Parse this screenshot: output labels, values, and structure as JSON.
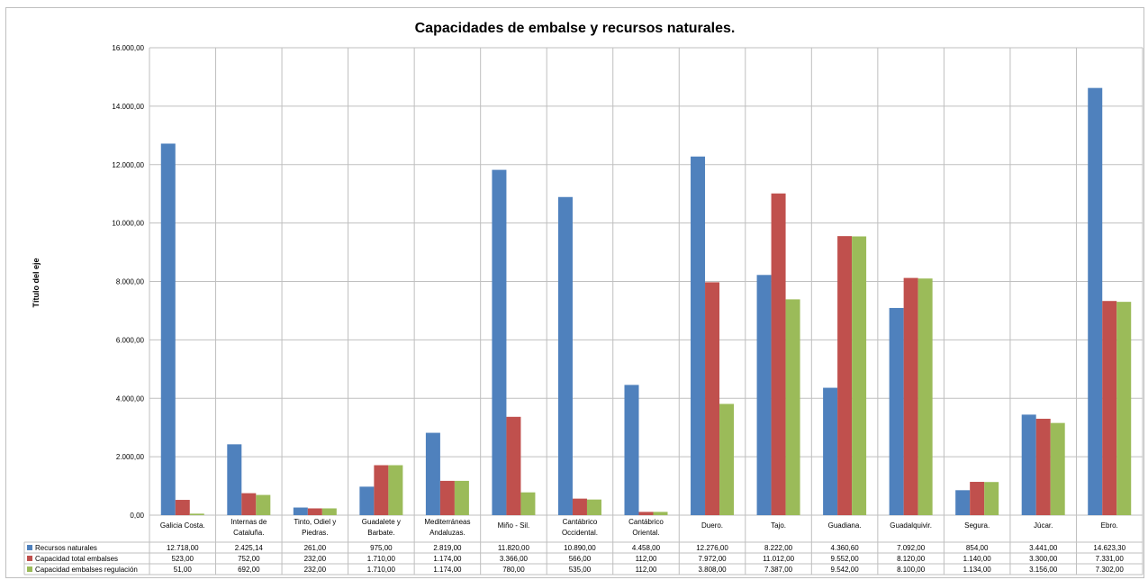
{
  "chart_data": {
    "type": "bar",
    "title": "Capacidades de embalse y recursos naturales.",
    "ylabel": "Título del eje",
    "xlabel": "",
    "ylim": [
      0,
      16000
    ],
    "yticks": [
      0,
      2000,
      4000,
      6000,
      8000,
      10000,
      12000,
      14000,
      16000
    ],
    "ytick_labels": [
      "0,00",
      "2.000,00",
      "4.000,00",
      "6.000,00",
      "8.000,00",
      "10.000,00",
      "12.000,00",
      "14.000,00",
      "16.000,00"
    ],
    "grid": "on",
    "legend": "data-table",
    "categories": [
      [
        "Galicia Costa."
      ],
      [
        "Internas de",
        "Cataluña."
      ],
      [
        "Tinto, Odiel y",
        "Piedras."
      ],
      [
        "Guadalete y",
        "Barbate."
      ],
      [
        "Mediterráneas",
        "Andaluzas."
      ],
      [
        "Miño - Sil."
      ],
      [
        "Cantábrico",
        "Occidental."
      ],
      [
        "Cantábrico",
        "Oriental."
      ],
      [
        "Duero."
      ],
      [
        "Tajo."
      ],
      [
        "Guadiana."
      ],
      [
        "Guadalquivir."
      ],
      [
        "Segura."
      ],
      [
        "Júcar."
      ],
      [
        "Ebro."
      ]
    ],
    "series": [
      {
        "name": "Recursos naturales",
        "color": "#4f81bd",
        "values": [
          12718,
          2425.14,
          261,
          975,
          2819,
          11820,
          10890,
          4458,
          12276,
          8222,
          4360.6,
          7092,
          854,
          3441,
          14623.3
        ],
        "labels": [
          "12.718,00",
          "2.425,14",
          "261,00",
          "975,00",
          "2.819,00",
          "11.820,00",
          "10.890,00",
          "4.458,00",
          "12.276,00",
          "8.222,00",
          "4.360,60",
          "7.092,00",
          "854,00",
          "3.441,00",
          "14.623,30"
        ]
      },
      {
        "name": "Capacidad total embalses",
        "color": "#c0504d",
        "values": [
          523,
          752,
          232,
          1710,
          1174,
          3366,
          566,
          112,
          7972,
          11012,
          9552,
          8120,
          1140,
          3300,
          7331
        ],
        "labels": [
          "523,00",
          "752,00",
          "232,00",
          "1.710,00",
          "1.174,00",
          "3.366,00",
          "566,00",
          "112,00",
          "7.972,00",
          "11.012,00",
          "9.552,00",
          "8.120,00",
          "1.140,00",
          "3.300,00",
          "7.331,00"
        ]
      },
      {
        "name": "Capacidad embalses regulación",
        "color": "#9bbb59",
        "values": [
          51,
          692,
          232,
          1710,
          1174,
          780,
          535,
          112,
          3808,
          7387,
          9542,
          8100,
          1134,
          3156,
          7302
        ],
        "labels": [
          "51,00",
          "692,00",
          "232,00",
          "1.710,00",
          "1.174,00",
          "780,00",
          "535,00",
          "112,00",
          "3.808,00",
          "7.387,00",
          "9.542,00",
          "8.100,00",
          "1.134,00",
          "3.156,00",
          "7.302,00"
        ]
      }
    ]
  }
}
